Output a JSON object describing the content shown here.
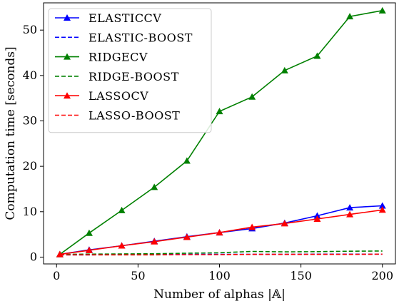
{
  "chart_data": {
    "type": "line",
    "title": "",
    "xlabel": "Number of alphas |𝔸|",
    "ylabel": "Computation time [seconds]",
    "xlim": [
      -8,
      208
    ],
    "ylim": [
      -1.5,
      56
    ],
    "xticks": [
      0,
      50,
      100,
      150,
      200
    ],
    "yticks": [
      0,
      10,
      20,
      30,
      40,
      50
    ],
    "grid": false,
    "legend_position": "top-left",
    "series": [
      {
        "name": "ELASTICCV",
        "color": "#0000ff",
        "style": "solid",
        "marker": "triangle",
        "x": [
          2,
          20,
          40,
          60,
          80,
          100,
          120,
          140,
          160,
          180,
          200
        ],
        "y": [
          0.6,
          1.6,
          2.5,
          3.5,
          4.5,
          5.4,
          6.3,
          7.5,
          9.1,
          10.9,
          11.3
        ]
      },
      {
        "name": "ELASTIC-BOOST",
        "color": "#0000ff",
        "style": "dashed",
        "marker": "none",
        "x": [
          2,
          20,
          40,
          60,
          80,
          100,
          120,
          140,
          160,
          180,
          200
        ],
        "y": [
          0.5,
          0.5,
          0.55,
          0.55,
          0.6,
          0.6,
          0.6,
          0.6,
          0.65,
          0.65,
          0.65
        ]
      },
      {
        "name": "RIDGECV",
        "color": "#008000",
        "style": "solid",
        "marker": "triangle",
        "x": [
          2,
          20,
          40,
          60,
          80,
          100,
          120,
          140,
          160,
          180,
          200
        ],
        "y": [
          0.6,
          5.3,
          10.3,
          15.4,
          21.2,
          32.1,
          35.3,
          41.1,
          44.3,
          53.0,
          54.3
        ]
      },
      {
        "name": "RIDGE-BOOST",
        "color": "#008000",
        "style": "dashed",
        "marker": "none",
        "x": [
          2,
          20,
          40,
          60,
          80,
          100,
          120,
          140,
          160,
          180,
          200
        ],
        "y": [
          0.6,
          0.65,
          0.7,
          0.75,
          0.85,
          0.95,
          1.25,
          1.15,
          1.2,
          1.3,
          1.35
        ]
      },
      {
        "name": "LASSOCV",
        "color": "#ff0000",
        "style": "solid",
        "marker": "triangle",
        "x": [
          2,
          20,
          40,
          60,
          80,
          100,
          120,
          140,
          160,
          180,
          200
        ],
        "y": [
          0.6,
          1.5,
          2.5,
          3.4,
          4.4,
          5.4,
          6.6,
          7.4,
          8.4,
          9.4,
          10.4
        ]
      },
      {
        "name": "LASSO-BOOST",
        "color": "#ff0000",
        "style": "dashed",
        "marker": "none",
        "x": [
          2,
          20,
          40,
          60,
          80,
          100,
          120,
          140,
          160,
          180,
          200
        ],
        "y": [
          0.5,
          0.5,
          0.5,
          0.5,
          0.55,
          0.55,
          0.6,
          0.6,
          0.6,
          0.6,
          0.65
        ]
      }
    ]
  }
}
